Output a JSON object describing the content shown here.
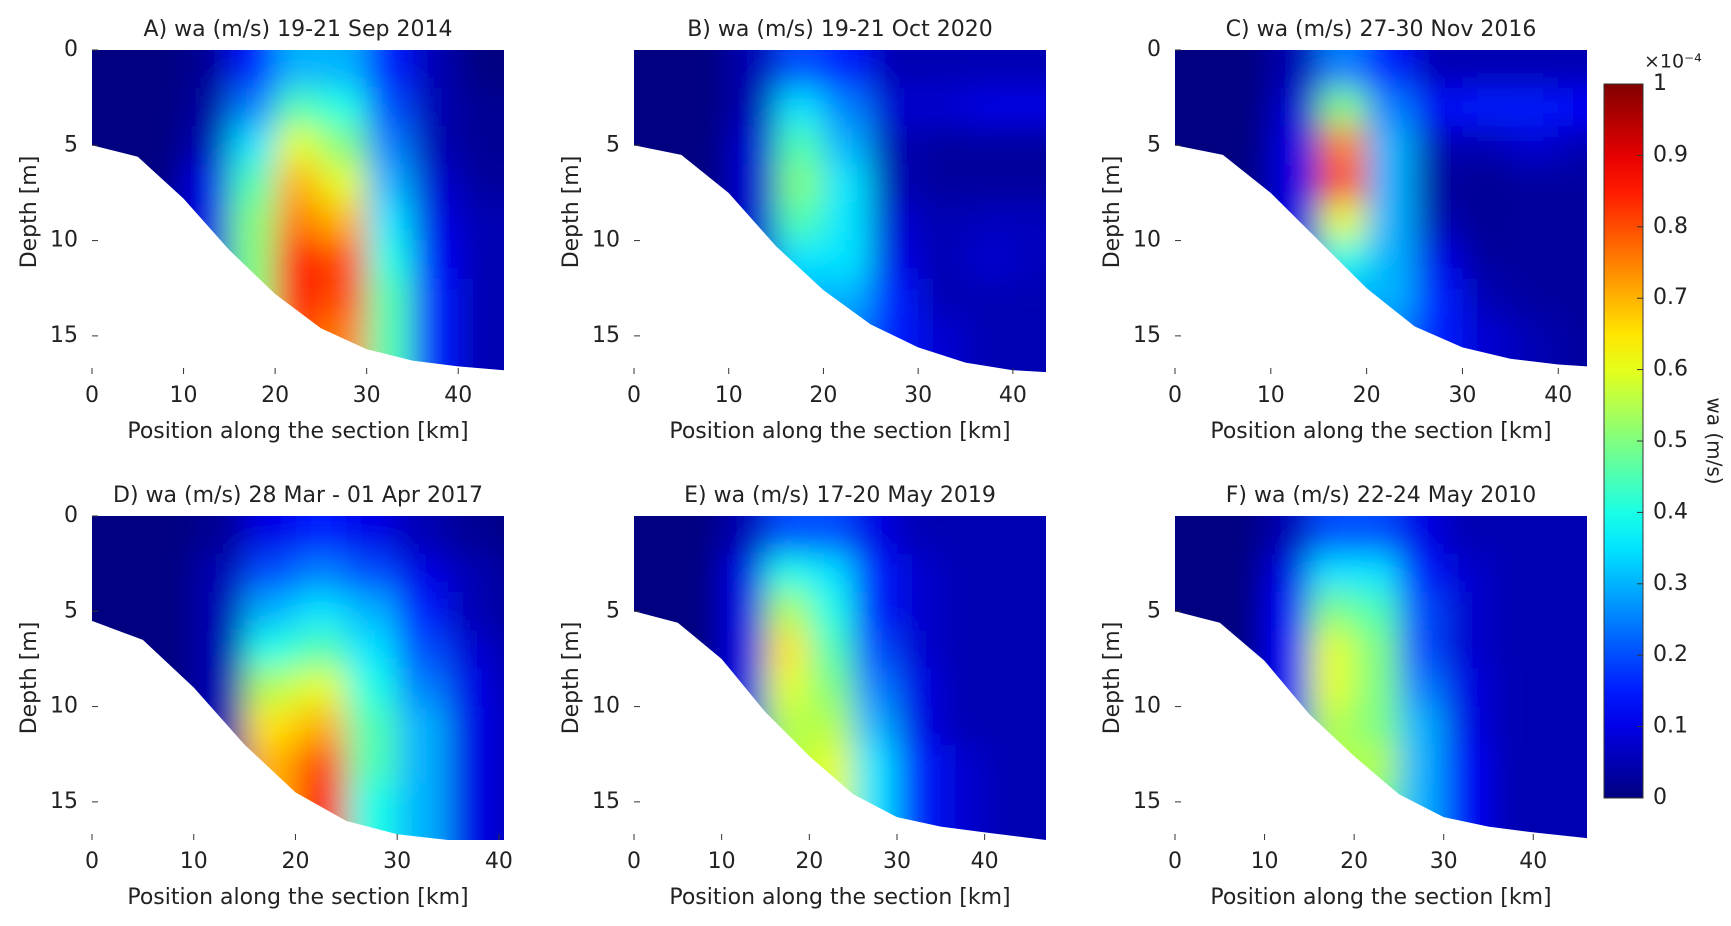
{
  "chart_data": [
    {
      "type": "heatmap",
      "title": "A) wa (m/s) 19-21 Sep 2014",
      "xlabel": "Position along the section [km]",
      "ylabel": "Depth [m]",
      "xlim": [
        0,
        45
      ],
      "ylim": [
        0,
        17
      ],
      "y_reversed": true,
      "xticks": [
        0,
        10,
        20,
        30,
        40
      ],
      "yticks": [
        0,
        5,
        10,
        15
      ],
      "x": [
        2.5,
        7.5,
        12.5,
        17.5,
        22.5,
        27.5,
        32.5,
        37.5,
        42.5
      ],
      "depth": [
        1,
        3,
        5,
        7,
        9,
        11,
        13,
        15
      ],
      "values": [
        [
          0,
          0,
          0.02,
          0.15,
          0.3,
          0.3,
          0.15,
          0.05,
          0
        ],
        [
          0,
          0,
          0.03,
          0.25,
          0.45,
          0.4,
          0.2,
          0.05,
          0.02
        ],
        [
          0,
          0,
          0.05,
          0.35,
          0.6,
          0.5,
          0.25,
          0.05,
          0.02
        ],
        [
          0,
          0,
          0.1,
          0.45,
          0.7,
          0.6,
          0.3,
          0.08,
          0.03
        ],
        [
          0,
          0,
          0.1,
          0.5,
          0.75,
          0.7,
          0.35,
          0.1,
          0.05
        ],
        [
          0,
          0,
          0.1,
          0.5,
          0.85,
          0.8,
          0.4,
          0.12,
          0.05
        ],
        [
          0,
          0,
          0.1,
          0.5,
          0.85,
          0.8,
          0.45,
          0.15,
          0.05
        ],
        [
          0,
          0,
          0.1,
          0.5,
          0.8,
          0.75,
          0.45,
          0.15,
          0.05
        ]
      ],
      "bottom_x": [
        0,
        5,
        10,
        15,
        20,
        25,
        30,
        35,
        40,
        45
      ],
      "bottom_depth": [
        5,
        5.6,
        7.8,
        10.5,
        12.8,
        14.6,
        15.7,
        16.3,
        16.6,
        16.8
      ]
    },
    {
      "type": "heatmap",
      "title": "B) wa (m/s) 19-21 Oct 2020",
      "xlabel": "Position along the section [km]",
      "ylabel": "Depth [m]",
      "xlim": [
        0,
        43.5
      ],
      "ylim": [
        0,
        17
      ],
      "y_reversed": true,
      "xticks": [
        0,
        10,
        20,
        30,
        40
      ],
      "yticks": [
        5,
        10,
        15
      ],
      "x": [
        2.5,
        7.5,
        12.5,
        17.5,
        22.5,
        27.5,
        32.5,
        37.5,
        42.5
      ],
      "depth": [
        1,
        3,
        5,
        7,
        9,
        11,
        13,
        15
      ],
      "values": [
        [
          0,
          0,
          0.05,
          0.2,
          0.15,
          0.05,
          0.05,
          0.05,
          0.05
        ],
        [
          0,
          0,
          0.05,
          0.35,
          0.25,
          0.08,
          0.08,
          0.1,
          0.1
        ],
        [
          0,
          0,
          0.08,
          0.45,
          0.3,
          0.05,
          0.03,
          0.03,
          0.03
        ],
        [
          0,
          0,
          0.08,
          0.5,
          0.35,
          0.05,
          0.03,
          0.03,
          0.03
        ],
        [
          0,
          0,
          0.08,
          0.45,
          0.35,
          0.08,
          0.05,
          0.06,
          0.06
        ],
        [
          0,
          0,
          0.08,
          0.35,
          0.35,
          0.1,
          0.05,
          0.08,
          0.06
        ],
        [
          0,
          0,
          0.08,
          0.3,
          0.3,
          0.15,
          0.05,
          0.05,
          0.05
        ],
        [
          0,
          0,
          0.05,
          0.2,
          0.25,
          0.15,
          0.08,
          0.05,
          0.05
        ]
      ],
      "bottom_x": [
        0,
        5,
        10,
        15,
        20,
        25,
        30,
        35,
        40,
        43.5
      ],
      "bottom_depth": [
        5,
        5.5,
        7.5,
        10.3,
        12.6,
        14.4,
        15.6,
        16.4,
        16.8,
        16.9
      ]
    },
    {
      "type": "heatmap",
      "title": "C) wa (m/s) 27-30 Nov 2016",
      "xlabel": "Position along the section [km]",
      "ylabel": "Depth [m]",
      "xlim": [
        0,
        43
      ],
      "ylim": [
        0,
        17
      ],
      "y_reversed": true,
      "xticks": [
        0,
        10,
        20,
        30,
        40
      ],
      "yticks": [
        0,
        5,
        10,
        15
      ],
      "x": [
        2.5,
        7.5,
        12.5,
        17.5,
        22.5,
        27.5,
        32.5,
        37.5,
        42.5
      ],
      "depth": [
        1,
        3,
        5,
        7,
        9,
        11,
        13,
        15
      ],
      "values": [
        [
          0,
          0,
          0.05,
          0.25,
          0.15,
          0.05,
          0.05,
          0.05,
          0.05
        ],
        [
          0,
          0,
          0.08,
          0.5,
          0.25,
          0.12,
          0.15,
          0.15,
          0.12
        ],
        [
          0,
          0,
          0.1,
          0.75,
          0.3,
          0.05,
          0.05,
          0.08,
          0.05
        ],
        [
          0,
          0,
          0.1,
          0.8,
          0.3,
          0.03,
          0.02,
          0.03,
          0.03
        ],
        [
          0,
          0,
          0.1,
          0.6,
          0.3,
          0.05,
          0.02,
          0.03,
          0.03
        ],
        [
          0,
          0,
          0.1,
          0.4,
          0.3,
          0.1,
          0.03,
          0.03,
          0.03
        ],
        [
          0,
          0,
          0.1,
          0.3,
          0.3,
          0.15,
          0.05,
          0.03,
          0.03
        ],
        [
          0,
          0,
          0.05,
          0.2,
          0.25,
          0.15,
          0.08,
          0.05,
          0.03
        ]
      ],
      "bottom_x": [
        0,
        5,
        10,
        15,
        20,
        25,
        30,
        35,
        40,
        43
      ],
      "bottom_depth": [
        5,
        5.5,
        7.5,
        10,
        12.5,
        14.5,
        15.6,
        16.2,
        16.5,
        16.6
      ]
    },
    {
      "type": "heatmap",
      "title": "D) wa (m/s) 28 Mar - 01 Apr 2017",
      "xlabel": "Position along the section [km]",
      "ylabel": "Depth [m]",
      "xlim": [
        0,
        40.5
      ],
      "ylim": [
        0,
        17
      ],
      "y_reversed": true,
      "xticks": [
        0,
        10,
        20,
        30,
        40
      ],
      "yticks": [
        0,
        5,
        10,
        15
      ],
      "x": [
        2.5,
        7.5,
        12.5,
        17.5,
        22.5,
        27.5,
        32.5,
        37.5,
        42.5
      ],
      "depth": [
        1,
        3,
        5,
        7,
        9,
        11,
        13,
        15
      ],
      "values": [
        [
          0,
          0,
          0.02,
          0.1,
          0.15,
          0.1,
          0.05,
          0.02,
          0
        ],
        [
          0,
          0,
          0.05,
          0.2,
          0.25,
          0.2,
          0.1,
          0.05,
          0.02
        ],
        [
          0,
          0,
          0.05,
          0.3,
          0.35,
          0.3,
          0.15,
          0.05,
          0.02
        ],
        [
          0,
          0,
          0.05,
          0.4,
          0.45,
          0.35,
          0.2,
          0.08,
          0.03
        ],
        [
          0,
          0,
          0.05,
          0.55,
          0.6,
          0.4,
          0.25,
          0.1,
          0.03
        ],
        [
          0,
          0,
          0.05,
          0.65,
          0.7,
          0.45,
          0.3,
          0.1,
          0.05
        ],
        [
          0,
          0,
          0.05,
          0.7,
          0.8,
          0.45,
          0.3,
          0.1,
          0.05
        ],
        [
          0,
          0,
          0.05,
          0.7,
          0.85,
          0.4,
          0.3,
          0.1,
          0.05
        ]
      ],
      "bottom_x": [
        0,
        5,
        10,
        15,
        20,
        25,
        30,
        35,
        40,
        40.5
      ],
      "bottom_depth": [
        5.5,
        6.5,
        9,
        12,
        14.5,
        16,
        16.7,
        17,
        17,
        17
      ]
    },
    {
      "type": "heatmap",
      "title": "E) wa (m/s) 17-20 May 2019",
      "xlabel": "Position along the section [km]",
      "ylabel": "Depth [m]",
      "xlim": [
        0,
        47
      ],
      "ylim": [
        0,
        17
      ],
      "y_reversed": true,
      "xticks": [
        0,
        10,
        20,
        30,
        40
      ],
      "yticks": [
        5,
        10,
        15
      ],
      "x": [
        2.5,
        7.5,
        12.5,
        17.5,
        22.5,
        27.5,
        32.5,
        37.5,
        42.5
      ],
      "depth": [
        1,
        3,
        5,
        7,
        9,
        11,
        13,
        15
      ],
      "values": [
        [
          0,
          0,
          0.05,
          0.2,
          0.2,
          0.1,
          0.05,
          0.05,
          0.05
        ],
        [
          0,
          0,
          0.1,
          0.4,
          0.35,
          0.15,
          0.08,
          0.05,
          0.05
        ],
        [
          0,
          0,
          0.1,
          0.55,
          0.4,
          0.15,
          0.08,
          0.05,
          0.05
        ],
        [
          0,
          0,
          0.1,
          0.65,
          0.45,
          0.2,
          0.08,
          0.05,
          0.05
        ],
        [
          0,
          0,
          0.1,
          0.6,
          0.5,
          0.25,
          0.1,
          0.05,
          0.05
        ],
        [
          0,
          0,
          0.1,
          0.55,
          0.55,
          0.3,
          0.1,
          0.05,
          0.05
        ],
        [
          0,
          0,
          0.1,
          0.55,
          0.6,
          0.35,
          0.15,
          0.08,
          0.05
        ],
        [
          0,
          0,
          0.1,
          0.5,
          0.6,
          0.35,
          0.15,
          0.08,
          0.05
        ]
      ],
      "bottom_x": [
        0,
        5,
        10,
        15,
        20,
        25,
        30,
        35,
        40,
        47
      ],
      "bottom_depth": [
        5,
        5.6,
        7.5,
        10.3,
        12.6,
        14.6,
        15.8,
        16.3,
        16.6,
        17
      ]
    },
    {
      "type": "heatmap",
      "title": "F) wa (m/s) 22-24 May 2010",
      "xlabel": "Position along the section [km]",
      "ylabel": "Depth [m]",
      "xlim": [
        0,
        46
      ],
      "ylim": [
        0,
        17
      ],
      "y_reversed": true,
      "xticks": [
        0,
        10,
        20,
        30,
        40
      ],
      "yticks": [
        5,
        10,
        15
      ],
      "x": [
        2.5,
        7.5,
        12.5,
        17.5,
        22.5,
        27.5,
        32.5,
        37.5,
        42.5
      ],
      "depth": [
        1,
        3,
        5,
        7,
        9,
        11,
        13,
        15
      ],
      "values": [
        [
          0,
          0,
          0.05,
          0.2,
          0.2,
          0.1,
          0.05,
          0.05,
          0.05
        ],
        [
          0,
          0,
          0.1,
          0.35,
          0.35,
          0.15,
          0.08,
          0.05,
          0.05
        ],
        [
          0,
          0,
          0.12,
          0.5,
          0.45,
          0.2,
          0.08,
          0.05,
          0.05
        ],
        [
          0,
          0,
          0.12,
          0.6,
          0.5,
          0.2,
          0.08,
          0.05,
          0.05
        ],
        [
          0,
          0,
          0.12,
          0.6,
          0.5,
          0.25,
          0.1,
          0.05,
          0.05
        ],
        [
          0,
          0,
          0.12,
          0.55,
          0.5,
          0.3,
          0.1,
          0.05,
          0.05
        ],
        [
          0,
          0,
          0.12,
          0.55,
          0.55,
          0.3,
          0.12,
          0.05,
          0.05
        ],
        [
          0,
          0,
          0.1,
          0.5,
          0.5,
          0.3,
          0.12,
          0.05,
          0.05
        ]
      ],
      "bottom_x": [
        0,
        5,
        10,
        15,
        20,
        25,
        30,
        35,
        40,
        46
      ],
      "bottom_depth": [
        5,
        5.6,
        7.6,
        10.4,
        12.6,
        14.6,
        15.8,
        16.3,
        16.6,
        16.9
      ]
    }
  ],
  "colorbar": {
    "colormap": "jet",
    "clim": [
      0,
      1
    ],
    "ticks": [
      0,
      0.1,
      0.2,
      0.3,
      0.4,
      0.5,
      0.6,
      0.7,
      0.8,
      0.9,
      1
    ],
    "label": "wa (m/s)",
    "exponent_label": "×10⁻⁴"
  }
}
